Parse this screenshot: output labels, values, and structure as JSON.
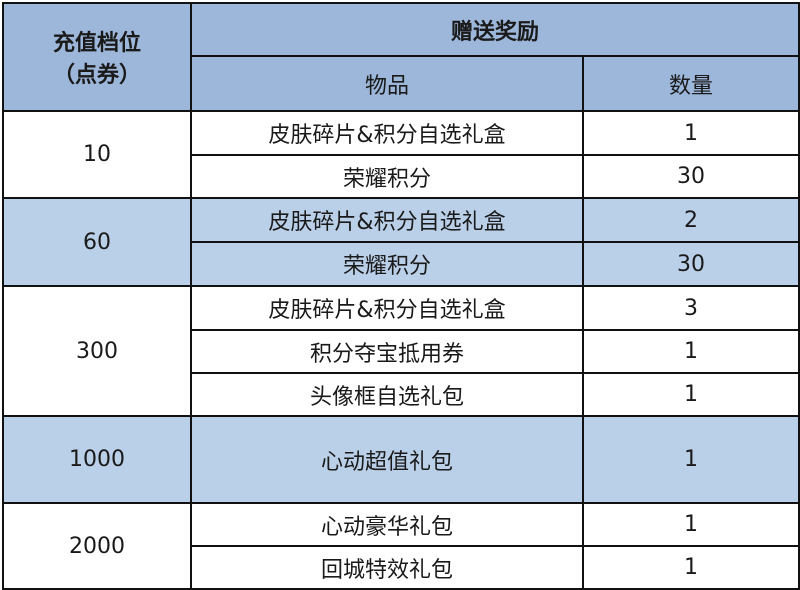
{
  "header": {
    "tier_label_line1": "充值档位",
    "tier_label_line2": "（点券）",
    "reward_group": "赠送奖励",
    "item_col": "物品",
    "qty_col": "数量"
  },
  "colors": {
    "header_bg": "#9db7da",
    "alt_row_bg": "#bacfe8",
    "row_bg": "#ffffff"
  },
  "tiers": [
    {
      "amount": "10",
      "rewards": [
        {
          "item": "皮肤碎片&积分自选礼盒",
          "qty": "1"
        },
        {
          "item": "荣耀积分",
          "qty": "30"
        }
      ]
    },
    {
      "amount": "60",
      "rewards": [
        {
          "item": "皮肤碎片&积分自选礼盒",
          "qty": "2"
        },
        {
          "item": "荣耀积分",
          "qty": "30"
        }
      ]
    },
    {
      "amount": "300",
      "rewards": [
        {
          "item": "皮肤碎片&积分自选礼盒",
          "qty": "3"
        },
        {
          "item": "积分夺宝抵用券",
          "qty": "1"
        },
        {
          "item": "头像框自选礼包",
          "qty": "1"
        }
      ]
    },
    {
      "amount": "1000",
      "rewards": [
        {
          "item": "心动超值礼包",
          "qty": "1"
        }
      ]
    },
    {
      "amount": "2000",
      "rewards": [
        {
          "item": "心动豪华礼包",
          "qty": "1"
        },
        {
          "item": "回城特效礼包",
          "qty": "1"
        }
      ]
    }
  ]
}
